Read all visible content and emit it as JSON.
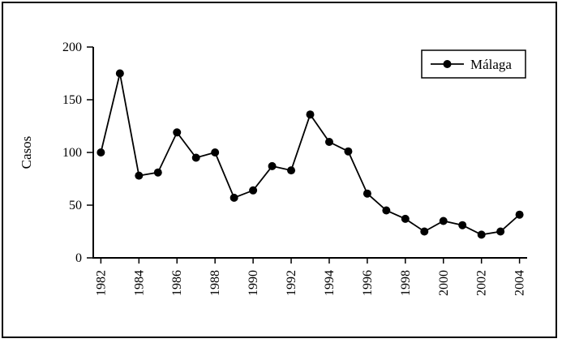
{
  "chart_data": {
    "type": "line",
    "title": "",
    "xlabel": "",
    "ylabel": "Casos",
    "grid": false,
    "marker": "filled-circle",
    "line_color": "#000000",
    "background_color": "#ffffff",
    "frame_color": "#000000",
    "ylim": [
      0,
      200
    ],
    "yticks": [
      0,
      50,
      100,
      150,
      200
    ],
    "xtick_labels": [
      "1982",
      "1984",
      "1986",
      "1988",
      "1990",
      "1992",
      "1994",
      "1996",
      "1998",
      "2000",
      "2002",
      "2004"
    ],
    "x_tick_rotation": 90,
    "legend": {
      "position": "top-right",
      "entries": [
        "Málaga"
      ]
    },
    "x": [
      1982,
      1983,
      1984,
      1985,
      1986,
      1987,
      1988,
      1989,
      1990,
      1991,
      1992,
      1993,
      1994,
      1995,
      1996,
      1997,
      1998,
      1999,
      2000,
      2001,
      2002,
      2003,
      2004
    ],
    "series": [
      {
        "name": "Málaga",
        "color": "#000000",
        "values": [
          100,
          175,
          78,
          81,
          119,
          95,
          100,
          57,
          64,
          87,
          83,
          136,
          110,
          101,
          61,
          45,
          37,
          25,
          35,
          31,
          22,
          25,
          41
        ]
      }
    ]
  }
}
